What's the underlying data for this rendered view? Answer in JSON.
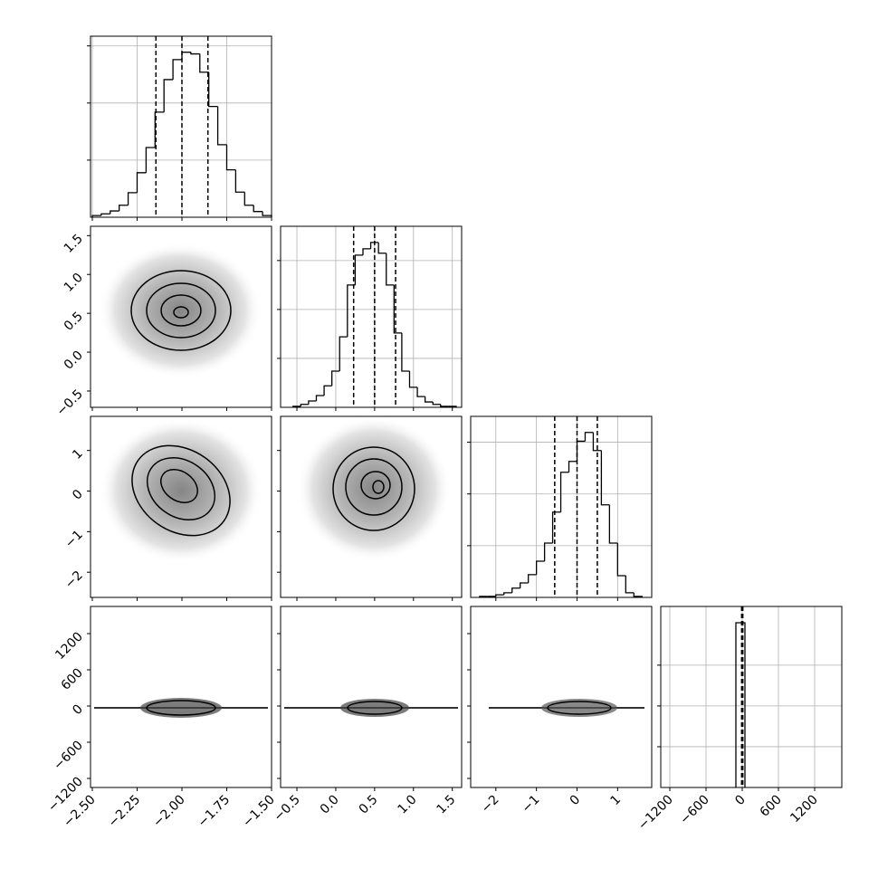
{
  "chart_data": {
    "type": "corner",
    "params": [
      {
        "xlim": [
          -2.51,
          -1.5
        ],
        "xticks": [
          {
            "value": -2.5,
            "label": "−2.50"
          },
          {
            "value": -2.25,
            "label": "−2.25"
          },
          {
            "value": -2.0,
            "label": "−2.00"
          },
          {
            "value": -1.75,
            "label": "−1.75"
          },
          {
            "value": -1.5,
            "label": "−1.50"
          }
        ],
        "bins": [
          -2.5,
          -2.45,
          -2.4,
          -2.35,
          -2.3,
          -2.25,
          -2.2,
          -2.15,
          -2.1,
          -2.05,
          -2.0,
          -1.95,
          -1.9,
          -1.85,
          -1.8,
          -1.75,
          -1.7,
          -1.65,
          -1.6,
          -1.55,
          -1.5
        ],
        "counts": [
          0.03,
          0.06,
          0.11,
          0.21,
          0.43,
          0.78,
          1.22,
          1.84,
          2.41,
          2.76,
          2.89,
          2.86,
          2.54,
          1.94,
          1.27,
          0.83,
          0.44,
          0.21,
          0.1,
          0.03
        ],
        "hist_ylim": [
          0,
          3.17
        ],
        "hist_yticks": [
          1,
          2,
          3
        ],
        "quantiles": [
          -2.145,
          -2.0,
          -1.855
        ]
      },
      {
        "xlim": [
          -0.71,
          1.62
        ],
        "xticks": [
          {
            "value": -0.5,
            "label": "−0.5"
          },
          {
            "value": 0,
            "label": "0.0"
          },
          0.5,
          {
            "value": 1,
            "label": "1.0"
          },
          1.5
        ],
        "bins": [
          -0.55,
          -0.45,
          -0.35,
          -0.25,
          -0.15,
          -0.05,
          0.05,
          0.15,
          0.25,
          0.35,
          0.45,
          0.55,
          0.65,
          0.75,
          0.85,
          0.95,
          1.05,
          1.15,
          1.25,
          1.35,
          1.45,
          1.55
        ],
        "counts": [
          0.02,
          0.06,
          0.13,
          0.24,
          0.44,
          0.74,
          1.44,
          2.5,
          3.11,
          3.24,
          3.37,
          3.15,
          2.5,
          1.52,
          0.74,
          0.41,
          0.22,
          0.11,
          0.06,
          0.02,
          0.02
        ],
        "hist_ylim": [
          0,
          3.7
        ],
        "hist_yticks": [
          1,
          2,
          3
        ],
        "quantiles": [
          0.23,
          0.5,
          0.77
        ]
      },
      {
        "xlim": [
          -2.62,
          1.84
        ],
        "xticks": [
          {
            "value": -2,
            "label": "−2"
          },
          {
            "value": -1,
            "label": "−1"
          },
          0,
          1
        ],
        "bins": [
          -2.4,
          -2.2,
          -2.0,
          -1.8,
          -1.6,
          -1.4,
          -1.2,
          -1.0,
          -0.8,
          -0.6,
          -0.4,
          -0.2,
          0,
          0.2,
          0.4,
          0.6,
          0.8,
          1.0,
          1.2,
          1.4,
          1.6
        ],
        "counts": [
          0.02,
          0.02,
          0.05,
          0.09,
          0.18,
          0.28,
          0.44,
          0.7,
          1.05,
          1.65,
          2.42,
          2.63,
          3.02,
          3.19,
          2.84,
          1.79,
          1.05,
          0.42,
          0.09,
          0.02
        ],
        "hist_ylim": [
          0,
          3.5
        ],
        "hist_yticks": [
          1,
          2,
          3
        ],
        "quantiles": [
          -0.55,
          0.0,
          0.5
        ]
      },
      {
        "xlim": [
          -1350,
          1650
        ],
        "xticks": [
          {
            "value": -1200,
            "label": "−1200"
          },
          {
            "value": -600,
            "label": "−600"
          },
          0,
          600,
          1200
        ],
        "bins": [
          -105,
          45
        ],
        "counts": [
          4.04
        ],
        "hist_ylim": [
          0,
          4.44
        ],
        "hist_yticks": [
          1,
          2,
          3
        ],
        "quantiles": [
          -10,
          0,
          10
        ]
      }
    ]
  }
}
